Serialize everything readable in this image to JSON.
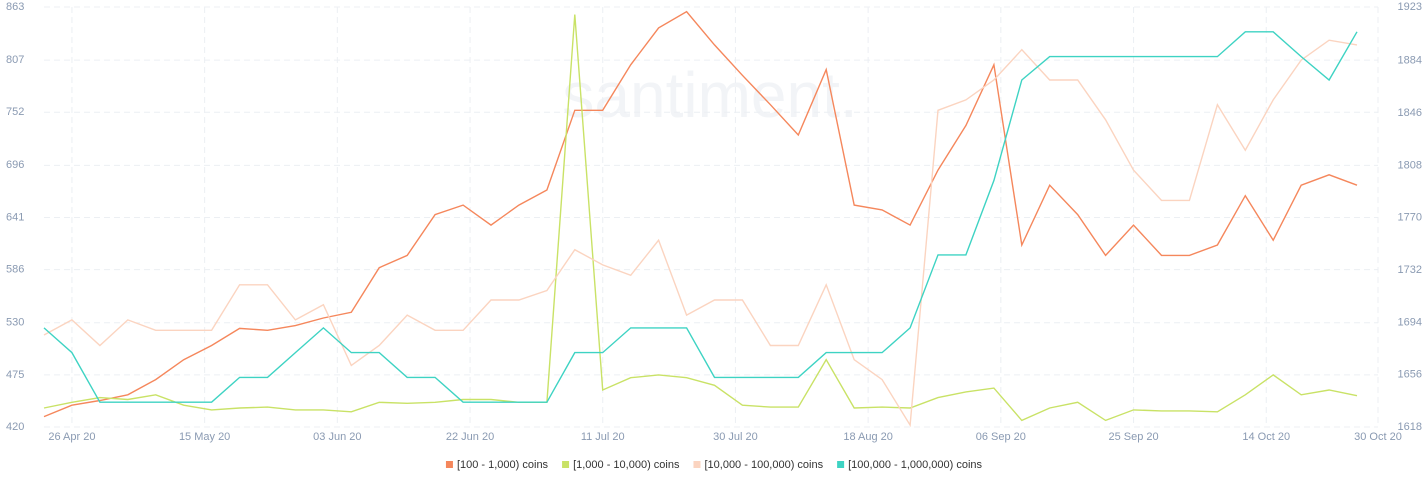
{
  "chart_data": {
    "type": "line",
    "watermark": "santiment.",
    "x": [
      "2020-04-22",
      "2020-04-26",
      "2020-04-30",
      "2020-05-04",
      "2020-05-08",
      "2020-05-12",
      "2020-05-16",
      "2020-05-20",
      "2020-05-24",
      "2020-05-28",
      "2020-06-01",
      "2020-06-05",
      "2020-06-09",
      "2020-06-13",
      "2020-06-17",
      "2020-06-21",
      "2020-06-25",
      "2020-06-29",
      "2020-07-03",
      "2020-07-07",
      "2020-07-11",
      "2020-07-15",
      "2020-07-19",
      "2020-07-23",
      "2020-07-27",
      "2020-07-31",
      "2020-08-04",
      "2020-08-08",
      "2020-08-12",
      "2020-08-16",
      "2020-08-20",
      "2020-08-24",
      "2020-08-28",
      "2020-09-01",
      "2020-09-05",
      "2020-09-09",
      "2020-09-13",
      "2020-09-17",
      "2020-09-21",
      "2020-09-25",
      "2020-09-29",
      "2020-10-03",
      "2020-10-07",
      "2020-10-11",
      "2020-10-15",
      "2020-10-19",
      "2020-10-23",
      "2020-10-27"
    ],
    "xlim": [
      "2020-04-22",
      "2020-10-30"
    ],
    "xticks": [
      {
        "value": "2020-04-26",
        "label": "26 Apr 20"
      },
      {
        "value": "2020-05-15",
        "label": "15 May 20"
      },
      {
        "value": "2020-06-03",
        "label": "03 Jun 20"
      },
      {
        "value": "2020-06-22",
        "label": "22 Jun 20"
      },
      {
        "value": "2020-07-11",
        "label": "11 Jul 20"
      },
      {
        "value": "2020-07-30",
        "label": "30 Jul 20"
      },
      {
        "value": "2020-08-18",
        "label": "18 Aug 20"
      },
      {
        "value": "2020-09-06",
        "label": "06 Sep 20"
      },
      {
        "value": "2020-09-25",
        "label": "25 Sep 20"
      },
      {
        "value": "2020-10-14",
        "label": "14 Oct 20"
      },
      {
        "value": "2020-10-30",
        "label": "30 Oct 20"
      }
    ],
    "ylim": [
      420,
      863
    ],
    "yticks": [
      420,
      475,
      530,
      586,
      641,
      696,
      752,
      807,
      863
    ],
    "y2lim": [
      1618,
      1923
    ],
    "y2ticks": [
      1618,
      1656,
      1694,
      1732,
      1770,
      1808,
      1846,
      1884,
      1923
    ],
    "grid": true,
    "legend": "bottom",
    "series": [
      {
        "name": "[100 - 1,000) coins",
        "color": "#f5875c",
        "values": [
          431,
          443,
          448,
          454,
          470,
          491,
          506,
          524,
          522,
          527,
          535,
          541,
          588,
          601,
          644,
          654,
          633,
          654,
          670,
          754,
          754,
          802,
          841,
          858,
          823,
          791,
          760,
          728,
          797,
          654,
          649,
          633,
          691,
          738,
          802,
          612,
          675,
          644,
          601,
          633,
          601,
          601,
          612,
          664,
          617,
          675,
          686,
          675
        ]
      },
      {
        "name": "[1,000 - 10,000) coins",
        "color": "#c9e266",
        "values": [
          440,
          446,
          451,
          449,
          454,
          443,
          438,
          440,
          441,
          438,
          438,
          436,
          446,
          445,
          446,
          449,
          449,
          446,
          446,
          855,
          459,
          472,
          475,
          472,
          464,
          443,
          441,
          441,
          491,
          440,
          441,
          440,
          451,
          457,
          461,
          427,
          440,
          446,
          427,
          438,
          437,
          437,
          436,
          454,
          475,
          454,
          459,
          453
        ]
      },
      {
        "name": "[10,000 - 100,000) coins",
        "color": "#fbd4c0",
        "values": [
          517,
          533,
          506,
          533,
          522,
          522,
          522,
          570,
          570,
          533,
          549,
          485,
          506,
          538,
          522,
          522,
          554,
          554,
          564,
          607,
          591,
          580,
          617,
          538,
          554,
          554,
          506,
          506,
          570,
          491,
          470,
          422,
          754,
          765,
          786,
          818,
          786,
          786,
          744,
          691,
          659,
          659,
          760,
          712,
          765,
          807,
          828,
          823
        ]
      },
      {
        "name": "[100,000  - 1,000,000) coins",
        "color": "#3ed3c3",
        "axis": "y2",
        "values": [
          1690,
          1672,
          1636,
          1636,
          1636,
          1636,
          1636,
          1654,
          1654,
          1672,
          1690,
          1672,
          1672,
          1654,
          1654,
          1636,
          1636,
          1636,
          1636,
          1672,
          1672,
          1690,
          1690,
          1690,
          1654,
          1654,
          1654,
          1654,
          1672,
          1672,
          1672,
          1690,
          1743,
          1743,
          1797,
          1870,
          1887,
          1887,
          1887,
          1887,
          1887,
          1887,
          1887,
          1905,
          1905,
          1887,
          1870,
          1905
        ]
      }
    ]
  }
}
